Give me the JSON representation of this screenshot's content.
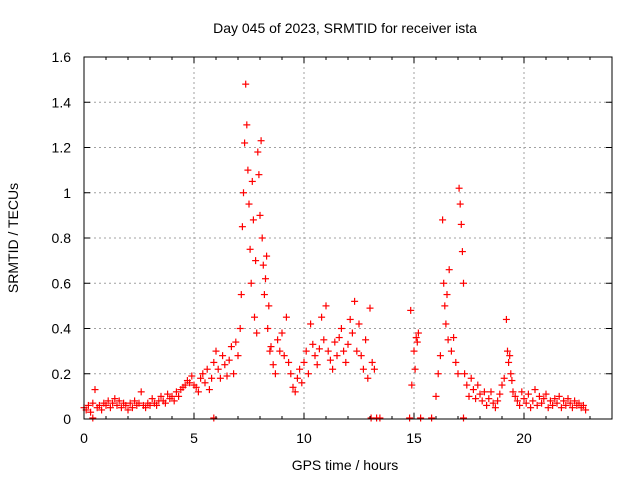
{
  "chart_data": {
    "type": "scatter",
    "title": "Day 045 of 2023, SRMTID for receiver ista",
    "xlabel": "GPS time / hours",
    "ylabel": "SRMTID / TECUs",
    "xlim": [
      0,
      24
    ],
    "ylim": [
      0,
      1.6
    ],
    "x_ticks": [
      0,
      5,
      10,
      15,
      20
    ],
    "x_tick_labels": [
      "0",
      "5",
      "10",
      "15",
      "20"
    ],
    "y_ticks": [
      0,
      0.2,
      0.4,
      0.6,
      0.8,
      1.0,
      1.2,
      1.4,
      1.6
    ],
    "y_tick_labels": [
      "0",
      "0.2",
      "0.4",
      "0.6",
      "0.8",
      "1",
      "1.2",
      "1.4",
      "1.6"
    ],
    "grid": true,
    "marker": "plus",
    "series": [
      {
        "name": "SRMTID",
        "color": "#ff0000",
        "points": [
          [
            0.0,
            0.05
          ],
          [
            0.1,
            0.04
          ],
          [
            0.2,
            0.06
          ],
          [
            0.3,
            0.03
          ],
          [
            0.4,
            0.07
          ],
          [
            0.5,
            0.13
          ],
          [
            0.6,
            0.05
          ],
          [
            0.7,
            0.06
          ],
          [
            0.8,
            0.04
          ],
          [
            0.9,
            0.07
          ],
          [
            1.0,
            0.06
          ],
          [
            1.1,
            0.08
          ],
          [
            1.2,
            0.05
          ],
          [
            1.3,
            0.07
          ],
          [
            1.4,
            0.09
          ],
          [
            1.5,
            0.06
          ],
          [
            1.6,
            0.08
          ],
          [
            1.7,
            0.05
          ],
          [
            1.8,
            0.07
          ],
          [
            1.9,
            0.06
          ],
          [
            2.0,
            0.04
          ],
          [
            2.1,
            0.07
          ],
          [
            2.2,
            0.05
          ],
          [
            2.3,
            0.08
          ],
          [
            2.4,
            0.06
          ],
          [
            2.5,
            0.07
          ],
          [
            2.6,
            0.12
          ],
          [
            2.7,
            0.06
          ],
          [
            2.8,
            0.05
          ],
          [
            2.9,
            0.07
          ],
          [
            3.0,
            0.06
          ],
          [
            3.1,
            0.09
          ],
          [
            3.2,
            0.07
          ],
          [
            3.3,
            0.06
          ],
          [
            3.4,
            0.08
          ],
          [
            3.5,
            0.1
          ],
          [
            3.6,
            0.08
          ],
          [
            3.7,
            0.07
          ],
          [
            3.8,
            0.11
          ],
          [
            3.9,
            0.09
          ],
          [
            4.0,
            0.1
          ],
          [
            4.1,
            0.08
          ],
          [
            4.2,
            0.12
          ],
          [
            4.3,
            0.1
          ],
          [
            4.4,
            0.13
          ],
          [
            4.5,
            0.14
          ],
          [
            4.6,
            0.15
          ],
          [
            4.7,
            0.17
          ],
          [
            4.8,
            0.16
          ],
          [
            4.9,
            0.19
          ],
          [
            5.0,
            0.15
          ],
          [
            5.1,
            0.14
          ],
          [
            5.2,
            0.12
          ],
          [
            5.3,
            0.18
          ],
          [
            5.4,
            0.2
          ],
          [
            5.5,
            0.16
          ],
          [
            5.6,
            0.22
          ],
          [
            5.7,
            0.13
          ],
          [
            5.8,
            0.18
          ],
          [
            5.9,
            0.25
          ],
          [
            6.0,
            0.3
          ],
          [
            6.1,
            0.22
          ],
          [
            6.2,
            0.18
          ],
          [
            6.3,
            0.28
          ],
          [
            6.4,
            0.24
          ],
          [
            6.5,
            0.19
          ],
          [
            6.6,
            0.26
          ],
          [
            6.7,
            0.32
          ],
          [
            6.8,
            0.2
          ],
          [
            6.9,
            0.34
          ],
          [
            7.0,
            0.28
          ],
          [
            7.1,
            0.4
          ],
          [
            7.15,
            0.55
          ],
          [
            7.2,
            0.85
          ],
          [
            7.25,
            1.0
          ],
          [
            7.3,
            1.22
          ],
          [
            7.35,
            1.48
          ],
          [
            7.4,
            1.3
          ],
          [
            7.45,
            1.1
          ],
          [
            7.5,
            0.95
          ],
          [
            7.55,
            0.75
          ],
          [
            7.6,
            0.6
          ],
          [
            7.65,
            1.05
          ],
          [
            7.7,
            0.88
          ],
          [
            7.75,
            0.45
          ],
          [
            7.8,
            0.7
          ],
          [
            7.85,
            0.38
          ],
          [
            7.9,
            1.18
          ],
          [
            7.95,
            1.08
          ],
          [
            8.0,
            0.9
          ],
          [
            8.05,
            1.23
          ],
          [
            8.1,
            0.8
          ],
          [
            8.15,
            0.68
          ],
          [
            8.2,
            0.55
          ],
          [
            8.25,
            0.62
          ],
          [
            8.3,
            0.72
          ],
          [
            8.35,
            0.4
          ],
          [
            8.4,
            0.5
          ],
          [
            8.45,
            0.3
          ],
          [
            8.5,
            0.32
          ],
          [
            8.6,
            0.24
          ],
          [
            8.7,
            0.2
          ],
          [
            8.8,
            0.35
          ],
          [
            8.9,
            0.3
          ],
          [
            9.0,
            0.38
          ],
          [
            9.1,
            0.28
          ],
          [
            9.2,
            0.45
          ],
          [
            9.3,
            0.25
          ],
          [
            9.4,
            0.2
          ],
          [
            9.5,
            0.14
          ],
          [
            9.6,
            0.12
          ],
          [
            9.7,
            0.18
          ],
          [
            9.8,
            0.22
          ],
          [
            9.9,
            0.16
          ],
          [
            10.0,
            0.25
          ],
          [
            10.1,
            0.3
          ],
          [
            10.2,
            0.2
          ],
          [
            10.3,
            0.42
          ],
          [
            10.4,
            0.33
          ],
          [
            10.5,
            0.28
          ],
          [
            10.6,
            0.24
          ],
          [
            10.7,
            0.31
          ],
          [
            10.8,
            0.45
          ],
          [
            10.9,
            0.35
          ],
          [
            11.0,
            0.5
          ],
          [
            11.1,
            0.3
          ],
          [
            11.2,
            0.26
          ],
          [
            11.3,
            0.22
          ],
          [
            11.4,
            0.34
          ],
          [
            11.5,
            0.28
          ],
          [
            11.6,
            0.36
          ],
          [
            11.7,
            0.4
          ],
          [
            11.8,
            0.3
          ],
          [
            11.9,
            0.25
          ],
          [
            12.0,
            0.33
          ],
          [
            12.1,
            0.44
          ],
          [
            12.2,
            0.38
          ],
          [
            12.3,
            0.52
          ],
          [
            12.4,
            0.3
          ],
          [
            12.5,
            0.42
          ],
          [
            12.6,
            0.28
          ],
          [
            12.7,
            0.22
          ],
          [
            12.8,
            0.35
          ],
          [
            12.9,
            0.18
          ],
          [
            13.0,
            0.49
          ],
          [
            13.1,
            0.25
          ],
          [
            13.2,
            0.22
          ],
          [
            13.05,
            0.0
          ],
          [
            13.3,
            0.0
          ],
          [
            13.45,
            0.0
          ],
          [
            14.8,
            0.0
          ],
          [
            14.85,
            0.48
          ],
          [
            14.9,
            0.15
          ],
          [
            15.0,
            0.3
          ],
          [
            15.05,
            0.22
          ],
          [
            15.1,
            0.36
          ],
          [
            15.15,
            0.34
          ],
          [
            15.2,
            0.38
          ],
          [
            15.3,
            0.0
          ],
          [
            15.8,
            0.0
          ],
          [
            16.0,
            0.1
          ],
          [
            16.1,
            0.2
          ],
          [
            16.2,
            0.28
          ],
          [
            16.3,
            0.88
          ],
          [
            16.35,
            0.6
          ],
          [
            16.4,
            0.5
          ],
          [
            16.45,
            0.42
          ],
          [
            16.5,
            0.55
          ],
          [
            16.55,
            0.35
          ],
          [
            16.6,
            0.66
          ],
          [
            16.7,
            0.3
          ],
          [
            16.8,
            0.36
          ],
          [
            16.9,
            0.25
          ],
          [
            17.0,
            0.2
          ],
          [
            17.05,
            1.02
          ],
          [
            17.1,
            0.95
          ],
          [
            17.15,
            0.86
          ],
          [
            17.2,
            0.74
          ],
          [
            17.25,
            0.6
          ],
          [
            17.3,
            0.2
          ],
          [
            17.25,
            0.0
          ],
          [
            17.4,
            0.15
          ],
          [
            17.5,
            0.1
          ],
          [
            17.6,
            0.18
          ],
          [
            17.7,
            0.13
          ],
          [
            17.8,
            0.09
          ],
          [
            17.9,
            0.15
          ],
          [
            18.0,
            0.11
          ],
          [
            18.1,
            0.08
          ],
          [
            18.2,
            0.12
          ],
          [
            18.3,
            0.06
          ],
          [
            18.4,
            0.09
          ],
          [
            18.5,
            0.12
          ],
          [
            18.6,
            0.07
          ],
          [
            18.7,
            0.05
          ],
          [
            18.8,
            0.08
          ],
          [
            18.9,
            0.11
          ],
          [
            19.0,
            0.15
          ],
          [
            19.1,
            0.18
          ],
          [
            19.2,
            0.44
          ],
          [
            19.25,
            0.3
          ],
          [
            19.3,
            0.25
          ],
          [
            19.35,
            0.28
          ],
          [
            19.4,
            0.2
          ],
          [
            19.45,
            0.17
          ],
          [
            19.5,
            0.12
          ],
          [
            19.6,
            0.1
          ],
          [
            19.7,
            0.08
          ],
          [
            19.8,
            0.06
          ],
          [
            19.9,
            0.12
          ],
          [
            20.0,
            0.09
          ],
          [
            20.1,
            0.07
          ],
          [
            20.2,
            0.11
          ],
          [
            20.3,
            0.05
          ],
          [
            20.4,
            0.08
          ],
          [
            20.5,
            0.13
          ],
          [
            20.6,
            0.06
          ],
          [
            20.7,
            0.1
          ],
          [
            20.8,
            0.07
          ],
          [
            20.9,
            0.09
          ],
          [
            21.0,
            0.11
          ],
          [
            21.1,
            0.05
          ],
          [
            21.2,
            0.08
          ],
          [
            21.3,
            0.06
          ],
          [
            21.4,
            0.09
          ],
          [
            21.5,
            0.07
          ],
          [
            21.6,
            0.1
          ],
          [
            21.7,
            0.05
          ],
          [
            21.8,
            0.08
          ],
          [
            21.9,
            0.06
          ],
          [
            22.0,
            0.09
          ],
          [
            22.1,
            0.07
          ],
          [
            22.2,
            0.05
          ],
          [
            22.3,
            0.08
          ],
          [
            22.4,
            0.06
          ],
          [
            22.5,
            0.07
          ],
          [
            22.6,
            0.05
          ],
          [
            22.7,
            0.06
          ],
          [
            22.8,
            0.04
          ],
          [
            5.9,
            0.0
          ],
          [
            0.4,
            0.0
          ]
        ]
      }
    ]
  }
}
